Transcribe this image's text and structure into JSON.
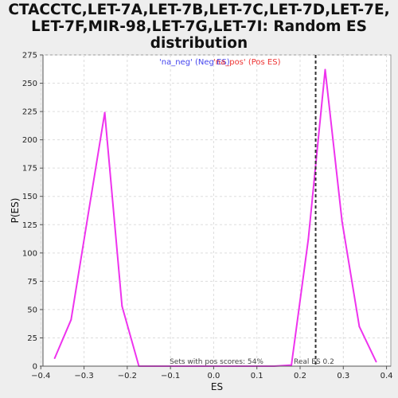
{
  "chart_data": {
    "type": "line",
    "title_lines": [
      "CTACCTC,LET-7A,LET-7B,LET-7C,LET-7D,LET-7E,",
      "LET-7F,MIR-98,LET-7G,LET-7I: Random ES",
      "distribution"
    ],
    "xlabel": "ES",
    "ylabel": "P(ES)",
    "xlim": [
      -0.395,
      0.41
    ],
    "ylim": [
      0,
      275
    ],
    "x_ticks": [
      -0.4,
      -0.3,
      -0.2,
      -0.1,
      0.0,
      0.1,
      0.2,
      0.3,
      0.4
    ],
    "x_tick_labels": [
      "−0.4",
      "−0.3",
      "−0.2",
      "−0.1",
      "0.0",
      "0.1",
      "0.2",
      "0.3",
      "0.4"
    ],
    "y_ticks": [
      0,
      25,
      50,
      75,
      100,
      125,
      150,
      175,
      200,
      225,
      250,
      275
    ],
    "y_tick_labels": [
      "0",
      "25",
      "50",
      "75",
      "100",
      "125",
      "150",
      "175",
      "200",
      "225",
      "250",
      "275"
    ],
    "grid": true,
    "legend": [
      {
        "label": "'na_neg' (Neg ES)",
        "color": "#4444ee"
      },
      {
        "label": "'na_pos' (Pos ES)",
        "color": "#ee3333"
      }
    ],
    "series": [
      {
        "color": "#ee33ee",
        "x": [
          -0.368,
          -0.33,
          -0.291,
          -0.252,
          -0.212,
          -0.173,
          -0.134,
          -0.095,
          -0.056,
          -0.016,
          0.023,
          0.062,
          0.101,
          0.14,
          0.18,
          0.219,
          0.258,
          0.297,
          0.337,
          0.376
        ],
        "y": [
          7,
          41,
          133,
          224,
          53,
          0,
          0,
          0,
          0,
          0,
          0,
          0,
          0,
          0,
          1,
          112,
          262,
          128,
          35,
          4
        ]
      }
    ],
    "vline": {
      "x": 0.236,
      "label": "Real ES 0.2",
      "color": "#333333"
    },
    "annotation": "Sets with pos scores: 54%"
  }
}
